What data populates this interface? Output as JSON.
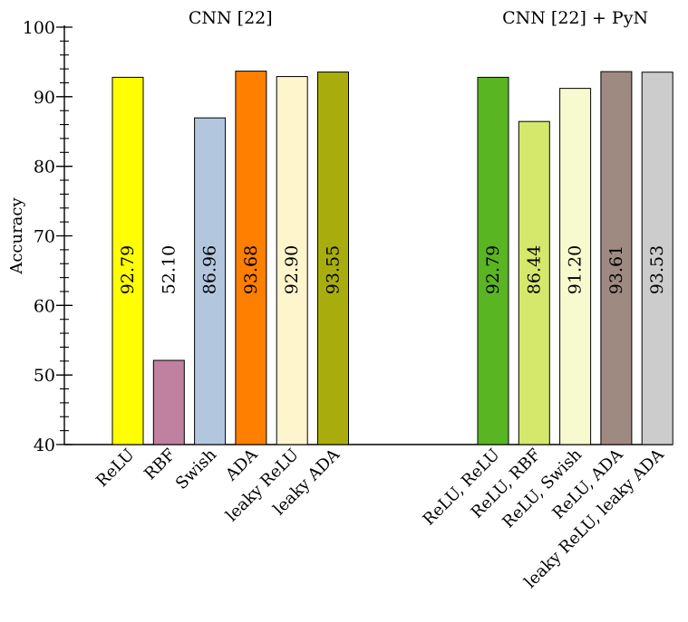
{
  "chart_data": {
    "type": "bar",
    "ylabel": "Accuracy",
    "ylim": [
      40,
      100
    ],
    "yticks": [
      40,
      50,
      60,
      70,
      80,
      90,
      100
    ],
    "minor_tick_step": 2,
    "grid": false,
    "groups": [
      {
        "title": "CNN [22]",
        "bars": [
          {
            "category": "ReLU",
            "value": 92.79,
            "label": "92.79",
            "color": "#ffff00"
          },
          {
            "category": "RBF",
            "value": 52.1,
            "label": "52.10",
            "color": "#c0809f"
          },
          {
            "category": "Swish",
            "value": 86.96,
            "label": "86.96",
            "color": "#b2c6de"
          },
          {
            "category": "ADA",
            "value": 93.68,
            "label": "93.68",
            "color": "#ff7f00"
          },
          {
            "category": "leaky ReLU",
            "value": 92.9,
            "label": "92.90",
            "color": "#fff5cc"
          },
          {
            "category": "leaky ADA",
            "value": 93.55,
            "label": "93.55",
            "color": "#a8ad0d"
          }
        ]
      },
      {
        "title": "CNN [22] + PyN",
        "bars": [
          {
            "category": "ReLU, ReLU",
            "value": 92.79,
            "label": "92.79",
            "color": "#5ab523"
          },
          {
            "category": "ReLU, RBF",
            "value": 86.44,
            "label": "86.44",
            "color": "#d5e86c"
          },
          {
            "category": "ReLU, Swish",
            "value": 91.2,
            "label": "91.20",
            "color": "#f7f9cf"
          },
          {
            "category": "ReLU, ADA",
            "value": 93.61,
            "label": "93.61",
            "color": "#9f8a82"
          },
          {
            "category": "leaky ReLU, leaky ADA",
            "value": 93.53,
            "label": "93.53",
            "color": "#cccccc"
          }
        ]
      }
    ]
  }
}
